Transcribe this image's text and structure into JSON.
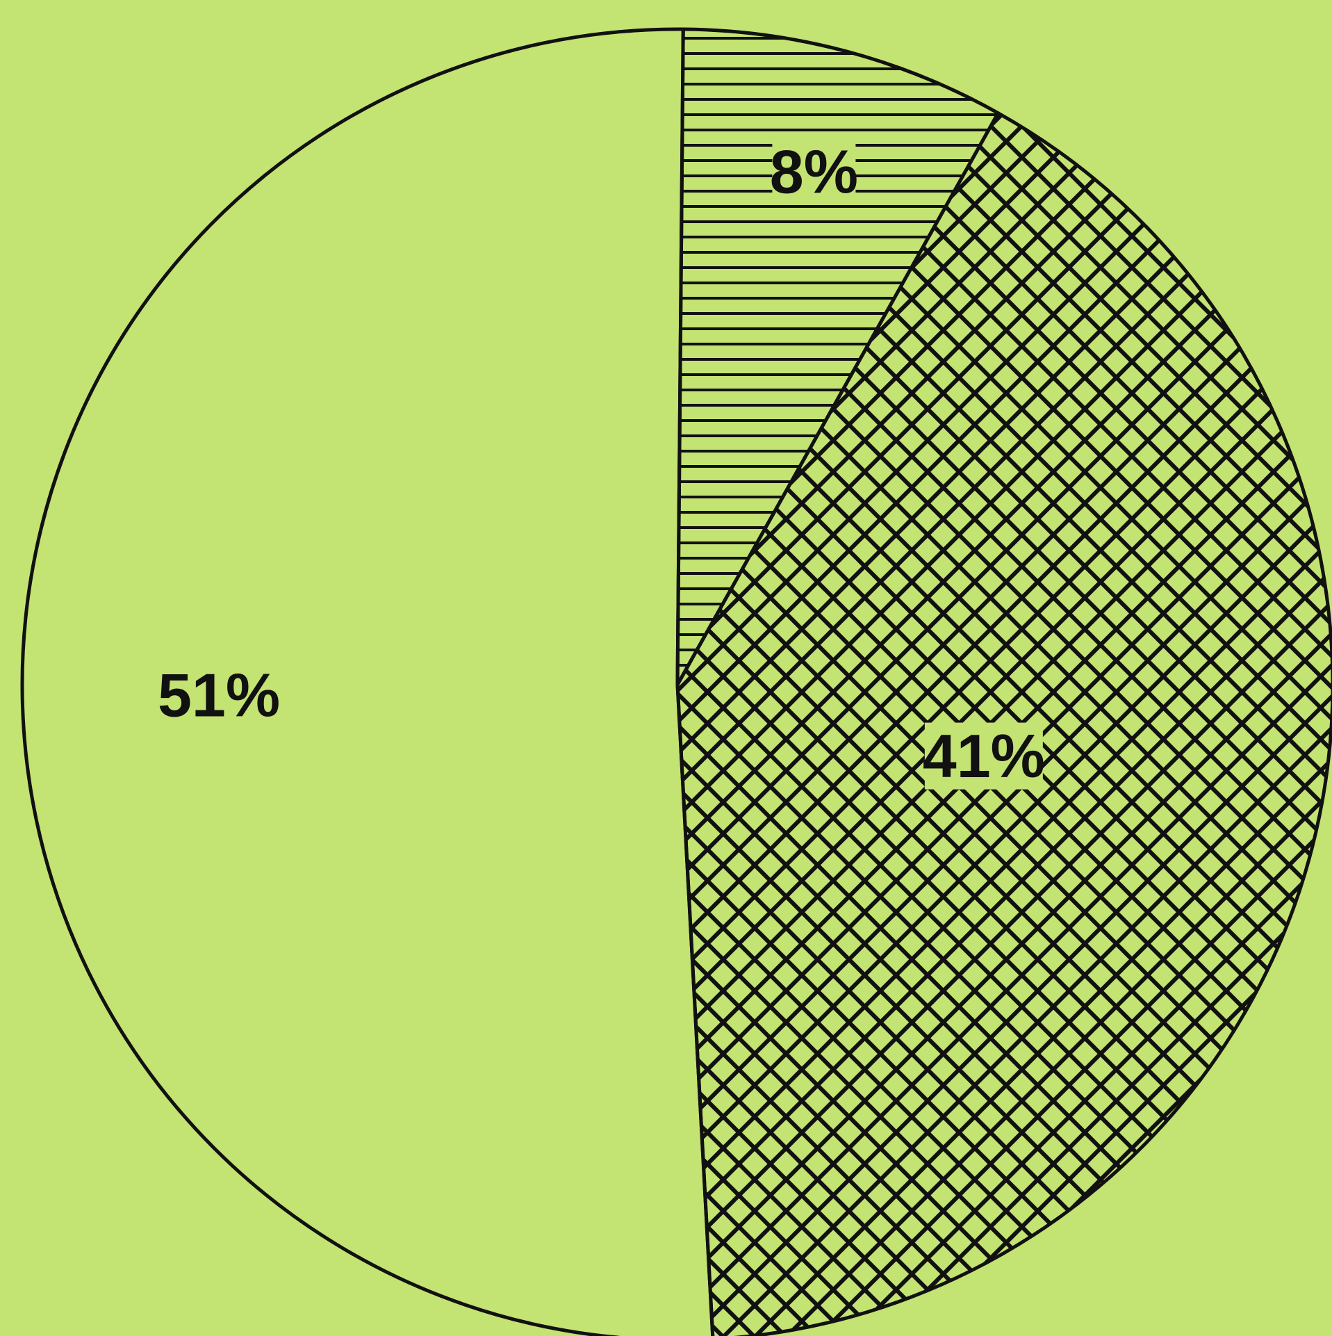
{
  "chart_data": {
    "type": "pie",
    "slices": [
      {
        "label": "51%",
        "value": 51,
        "pattern": "none"
      },
      {
        "label": "8%",
        "value": 8,
        "pattern": "horizontal-lines"
      },
      {
        "label": "41%",
        "value": 41,
        "pattern": "crosshatch"
      }
    ]
  },
  "colors": {
    "background": "#c3e373",
    "ink": "#111111"
  }
}
